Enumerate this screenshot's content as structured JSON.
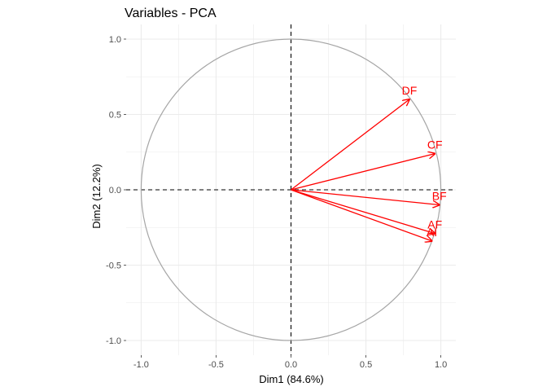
{
  "chart_data": {
    "type": "scatter",
    "subtype": "pca-variable-correlation-circle",
    "title": "Variables - PCA",
    "xlabel": "Dim1 (84.6%)",
    "ylabel": "Dim2 (12.2%)",
    "xlim": [
      -1.1,
      1.1
    ],
    "ylim": [
      -1.0,
      1.0
    ],
    "x_ticks": [
      -1.0,
      -0.5,
      0.0,
      0.5,
      1.0
    ],
    "x_tick_labels": [
      "-1.0",
      "-0.5",
      "0.0",
      "0.5",
      "1.0"
    ],
    "y_ticks": [
      -1.0,
      -0.5,
      0.0,
      0.5,
      1.0
    ],
    "y_tick_labels": [
      "-1.0",
      "-0.5",
      "0.0",
      "0.5",
      "1.0"
    ],
    "grid": true,
    "unit_circle": true,
    "reference_lines": [
      "x=0",
      "y=0"
    ],
    "variables": [
      {
        "name": "DF",
        "x": 0.79,
        "y": 0.6
      },
      {
        "name": "CF",
        "x": 0.96,
        "y": 0.24
      },
      {
        "name": "BF",
        "x": 0.99,
        "y": -0.1
      },
      {
        "name": "AF",
        "x": 0.96,
        "y": -0.29
      },
      {
        "name": "AI",
        "x": 0.94,
        "y": -0.34
      }
    ],
    "colors": {
      "arrows": "#ff0000",
      "circle": "#a6a6a6",
      "grid": "#ebebeb",
      "reference_lines": "#000000"
    }
  }
}
